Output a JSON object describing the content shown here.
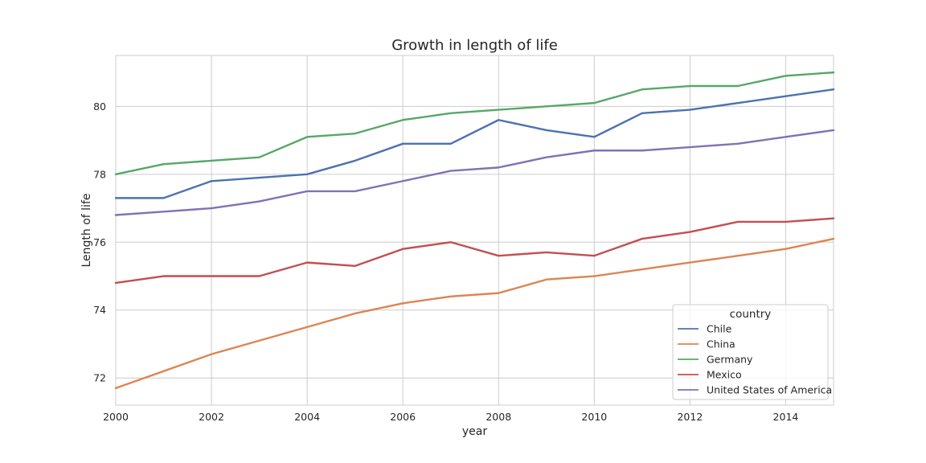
{
  "chart_data": {
    "type": "line",
    "title": "Growth in length of life",
    "xlabel": "year",
    "ylabel": "Length of life",
    "xlim": [
      2000,
      2015
    ],
    "ylim": [
      71.2,
      81.5
    ],
    "x_ticks": [
      2000,
      2002,
      2004,
      2006,
      2008,
      2010,
      2012,
      2014
    ],
    "y_ticks": [
      72,
      74,
      76,
      78,
      80
    ],
    "grid": true,
    "legend": {
      "title": "country",
      "position": "lower-right"
    },
    "x": [
      2000,
      2001,
      2002,
      2003,
      2004,
      2005,
      2006,
      2007,
      2008,
      2009,
      2010,
      2011,
      2012,
      2013,
      2014,
      2015
    ],
    "series": [
      {
        "name": "Chile",
        "color": "#4c72b0",
        "values": [
          77.3,
          77.3,
          77.8,
          77.9,
          78.0,
          78.4,
          78.9,
          78.9,
          79.6,
          79.3,
          79.1,
          79.8,
          79.9,
          80.1,
          80.3,
          80.5
        ]
      },
      {
        "name": "China",
        "color": "#dd8452",
        "values": [
          71.7,
          72.2,
          72.7,
          73.1,
          73.5,
          73.9,
          74.2,
          74.4,
          74.5,
          74.9,
          75.0,
          75.2,
          75.4,
          75.6,
          75.8,
          76.1
        ]
      },
      {
        "name": "Germany",
        "color": "#55a868",
        "values": [
          78.0,
          78.3,
          78.4,
          78.5,
          79.1,
          79.2,
          79.6,
          79.8,
          79.9,
          80.0,
          80.1,
          80.5,
          80.6,
          80.6,
          80.9,
          81.0
        ]
      },
      {
        "name": "Mexico",
        "color": "#c44e52",
        "values": [
          74.8,
          75.0,
          75.0,
          75.0,
          75.4,
          75.3,
          75.8,
          76.0,
          75.6,
          75.7,
          75.6,
          76.1,
          76.3,
          76.6,
          76.6,
          76.7
        ]
      },
      {
        "name": "United States of America",
        "color": "#8172b3",
        "values": [
          76.8,
          76.9,
          77.0,
          77.2,
          77.5,
          77.5,
          77.8,
          78.1,
          78.2,
          78.5,
          78.7,
          78.7,
          78.8,
          78.9,
          79.1,
          79.3
        ]
      }
    ]
  }
}
